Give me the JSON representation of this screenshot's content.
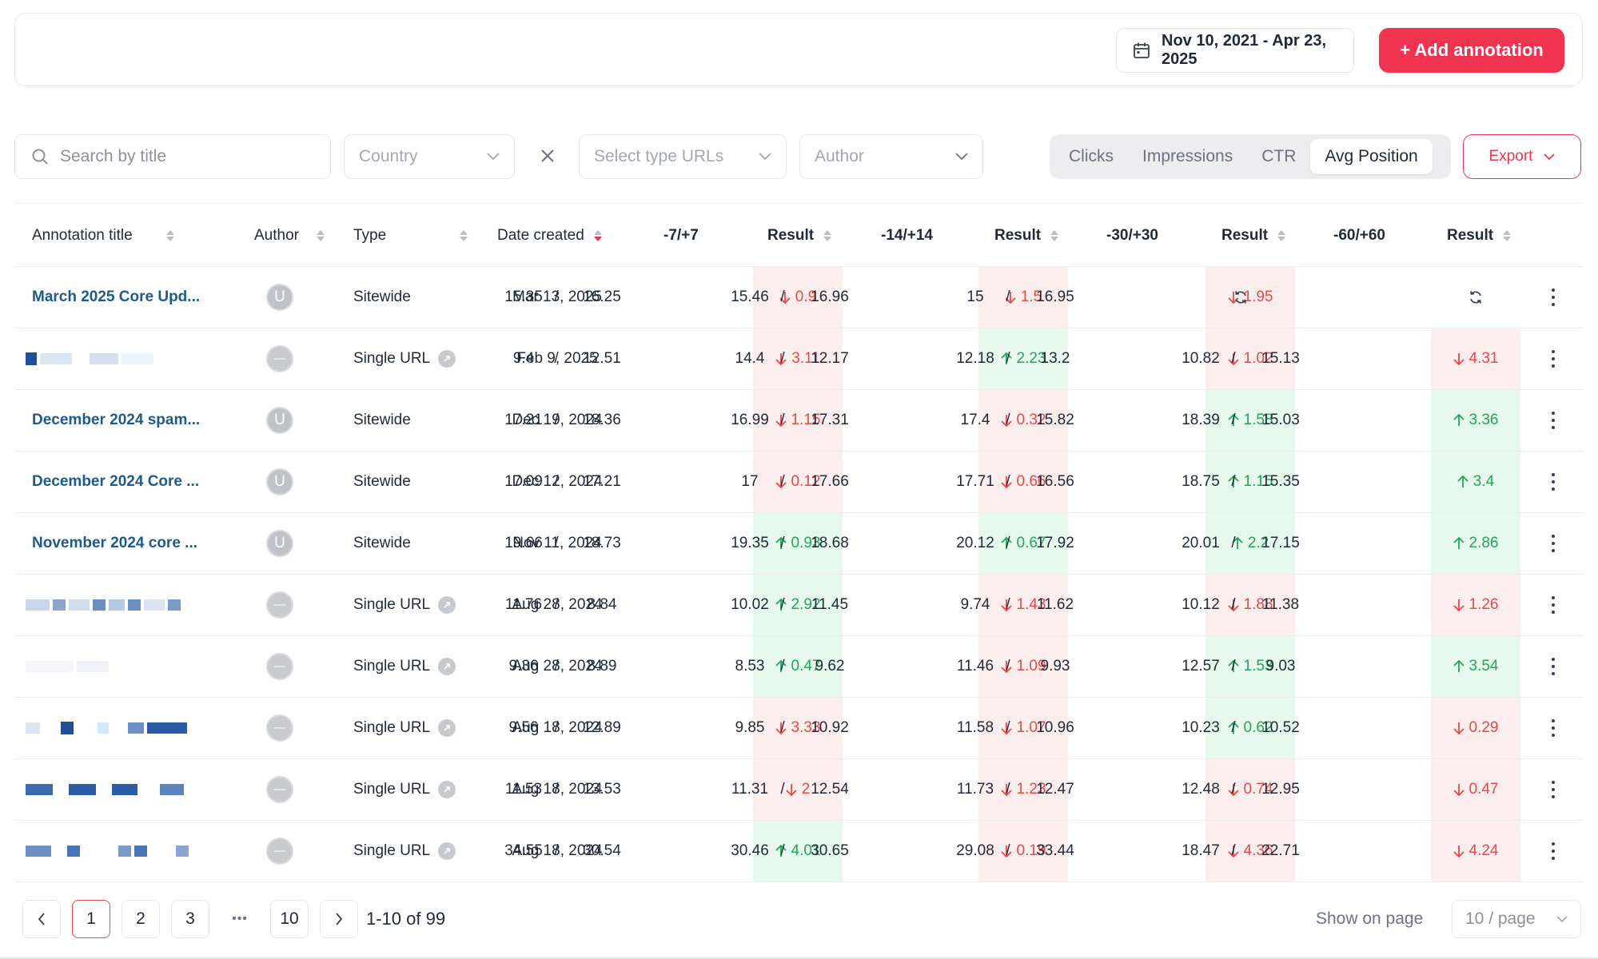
{
  "header": {
    "date_range": "Nov 10, 2021 - Apr 23, 2025",
    "add_annotation_label": "+ Add annotation"
  },
  "filters": {
    "search_placeholder": "Search by title",
    "country_placeholder": "Country",
    "type_urls_placeholder": "Select type URLs",
    "author_placeholder": "Author",
    "metric_tabs": [
      "Clicks",
      "Impressions",
      "CTR",
      "Avg Position"
    ],
    "active_metric": "Avg Position",
    "export_label": "Export"
  },
  "table": {
    "columns": {
      "title": "Annotation title",
      "author": "Author",
      "type": "Type",
      "date": "Date created",
      "w7": "-7/+7",
      "r7": "Result",
      "w14": "-14/+14",
      "r14": "Result",
      "w30": "-30/+30",
      "r30": "Result",
      "w60": "-60/+60",
      "r60": "Result"
    },
    "rows": [
      {
        "title": "March 2025 Core Upd...",
        "author": "U",
        "type": "Sitewide",
        "date": "Mar 13, 2025",
        "w7": [
          "15.35",
          "16.25"
        ],
        "r7": {
          "dir": "down",
          "v": "0.9"
        },
        "w14": [
          "15.46",
          "16.96"
        ],
        "r14": {
          "dir": "down",
          "v": "1.5"
        },
        "w30": [
          "15",
          "16.95"
        ],
        "r30": {
          "dir": "down",
          "v": "1.95"
        },
        "w60": null,
        "r60": null
      },
      {
        "title": "",
        "author": "",
        "type": "Single URL",
        "date": "Feb 9, 2025",
        "w7": [
          "9.4",
          "12.51"
        ],
        "r7": {
          "dir": "down",
          "v": "3.11"
        },
        "w14": [
          "14.4",
          "12.17"
        ],
        "r14": {
          "dir": "up",
          "v": "2.23"
        },
        "w30": [
          "12.18",
          "13.2"
        ],
        "r30": {
          "dir": "down",
          "v": "1.02"
        },
        "w60": [
          "10.82",
          "15.13"
        ],
        "r60": {
          "dir": "down",
          "v": "4.31"
        }
      },
      {
        "title": "December 2024 spam...",
        "author": "U",
        "type": "Sitewide",
        "date": "Dec 19, 2024",
        "w7": [
          "17.21",
          "18.36"
        ],
        "r7": {
          "dir": "down",
          "v": "1.15"
        },
        "w14": [
          "16.99",
          "17.31"
        ],
        "r14": {
          "dir": "down",
          "v": "0.32"
        },
        "w30": [
          "17.4",
          "15.82"
        ],
        "r30": {
          "dir": "up",
          "v": "1.58"
        },
        "w60": [
          "18.39",
          "15.03"
        ],
        "r60": {
          "dir": "up",
          "v": "3.36"
        }
      },
      {
        "title": "December 2024 Core ...",
        "author": "U",
        "type": "Sitewide",
        "date": "Dec 12, 2024",
        "w7": [
          "17.09",
          "17.21"
        ],
        "r7": {
          "dir": "down",
          "v": "0.12"
        },
        "w14": [
          "17",
          "17.66"
        ],
        "r14": {
          "dir": "down",
          "v": "0.66"
        },
        "w30": [
          "17.71",
          "16.56"
        ],
        "r30": {
          "dir": "up",
          "v": "1.15"
        },
        "w60": [
          "18.75",
          "15.35"
        ],
        "r60": {
          "dir": "up",
          "v": "3.4"
        }
      },
      {
        "title": "November 2024 core ...",
        "author": "U",
        "type": "Sitewide",
        "date": "Nov 11, 2024",
        "w7": [
          "19.66",
          "18.73"
        ],
        "r7": {
          "dir": "up",
          "v": "0.93"
        },
        "w14": [
          "19.35",
          "18.68"
        ],
        "r14": {
          "dir": "up",
          "v": "0.67"
        },
        "w30": [
          "20.12",
          "17.92"
        ],
        "r30": {
          "dir": "up",
          "v": "2.2"
        },
        "w60": [
          "20.01",
          "17.15"
        ],
        "r60": {
          "dir": "up",
          "v": "2.86"
        }
      },
      {
        "title": "",
        "author": "",
        "type": "Single URL",
        "date": "Aug 28, 2024",
        "w7": [
          "11.76",
          "8.84"
        ],
        "r7": {
          "dir": "up",
          "v": "2.92"
        },
        "w14": [
          "10.02",
          "11.45"
        ],
        "r14": {
          "dir": "down",
          "v": "1.43"
        },
        "w30": [
          "9.74",
          "11.62"
        ],
        "r30": {
          "dir": "down",
          "v": "1.88"
        },
        "w60": [
          "10.12",
          "11.38"
        ],
        "r60": {
          "dir": "down",
          "v": "1.26"
        }
      },
      {
        "title": "",
        "author": "",
        "type": "Single URL",
        "date": "Aug 28, 2024",
        "w7": [
          "9.36",
          "8.89"
        ],
        "r7": {
          "dir": "up",
          "v": "0.47"
        },
        "w14": [
          "8.53",
          "9.62"
        ],
        "r14": {
          "dir": "down",
          "v": "1.09"
        },
        "w30": [
          "11.46",
          "9.93"
        ],
        "r30": {
          "dir": "up",
          "v": "1.53"
        },
        "w60": [
          "12.57",
          "9.03"
        ],
        "r60": {
          "dir": "up",
          "v": "3.54"
        }
      },
      {
        "title": "",
        "author": "",
        "type": "Single URL",
        "date": "Aug 18, 2024",
        "w7": [
          "9.56",
          "12.89"
        ],
        "r7": {
          "dir": "down",
          "v": "3.33"
        },
        "w14": [
          "9.85",
          "10.92"
        ],
        "r14": {
          "dir": "down",
          "v": "1.07"
        },
        "w30": [
          "11.58",
          "10.96"
        ],
        "r30": {
          "dir": "up",
          "v": "0.62"
        },
        "w60": [
          "10.23",
          "10.52"
        ],
        "r60": {
          "dir": "down",
          "v": "0.29"
        }
      },
      {
        "title": "",
        "author": "",
        "type": "Single URL",
        "date": "Aug 18, 2024",
        "w7": [
          "11.53",
          "13.53"
        ],
        "r7": {
          "dir": "down",
          "v": "2"
        },
        "w14": [
          "11.31",
          "12.54"
        ],
        "r14": {
          "dir": "down",
          "v": "1.23"
        },
        "w30": [
          "11.73",
          "12.47"
        ],
        "r30": {
          "dir": "down",
          "v": "0.74"
        },
        "w60": [
          "12.48",
          "12.95"
        ],
        "r60": {
          "dir": "down",
          "v": "0.47"
        }
      },
      {
        "title": "",
        "author": "",
        "type": "Single URL",
        "date": "Aug 18, 2024",
        "w7": [
          "34.55",
          "30.54"
        ],
        "r7": {
          "dir": "up",
          "v": "4.01"
        },
        "w14": [
          "30.46",
          "30.65"
        ],
        "r14": {
          "dir": "down",
          "v": "0.19"
        },
        "w30": [
          "29.08",
          "33.44"
        ],
        "r30": {
          "dir": "down",
          "v": "4.36"
        },
        "w60": [
          "18.47",
          "22.71"
        ],
        "r60": {
          "dir": "down",
          "v": "4.24"
        }
      }
    ]
  },
  "pagination": {
    "pages": [
      "1",
      "2",
      "3",
      "10"
    ],
    "ellipsis": "•••",
    "active_page": "1",
    "range_text": "1-10 of 99",
    "show_on_page_label": "Show on page",
    "page_size": "10 / page"
  },
  "colors": {
    "accent": "#f0344f",
    "down_text": "#e5484d",
    "down_bg": "#fdeeee",
    "up_text": "#23a55a",
    "up_bg": "#e7f8ec",
    "link": "#1e5a8c"
  }
}
